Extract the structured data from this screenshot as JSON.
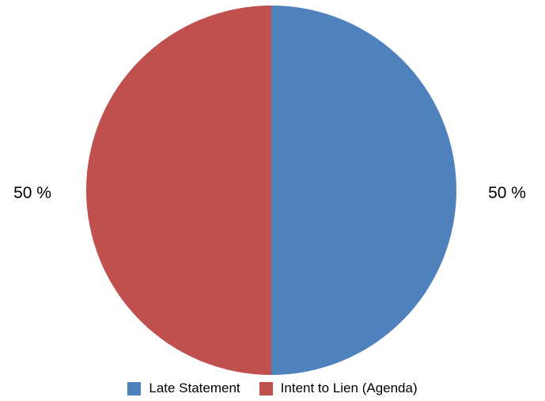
{
  "chart_data": {
    "type": "pie",
    "title": "",
    "legend_position": "bottom",
    "slices": [
      {
        "label": "Late Statement",
        "value": 50,
        "display": "50 %",
        "color": "#4f81bd"
      },
      {
        "label": "Intent to Lien (Agenda)",
        "value": 50,
        "display": "50 %",
        "color": "#c0504d"
      }
    ]
  }
}
